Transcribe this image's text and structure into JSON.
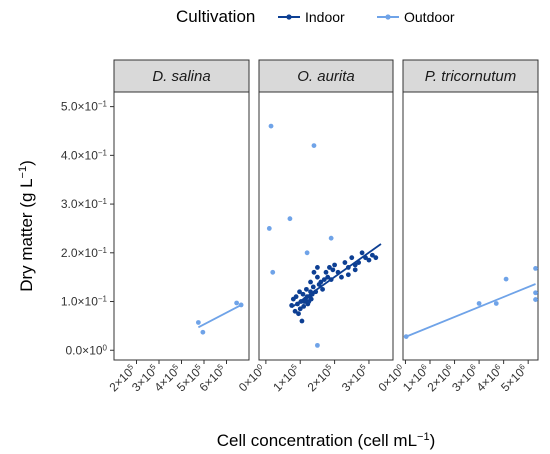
{
  "chart_data": {
    "type": "scatter",
    "xlabel": "Cell concentration (cell mL",
    "xlabel_sup": "−1",
    "xlabel_end": ")",
    "ylabel": "Dry matter (g L",
    "ylabel_sup": "−1",
    "ylabel_end": ")",
    "legend": {
      "title": "Cultivation",
      "position": "top",
      "entries": [
        {
          "label": "Indoor",
          "color": "#0d3f93"
        },
        {
          "label": "Outdoor",
          "color": "#6fa3e8"
        }
      ]
    },
    "y_axis": {
      "range": [
        -0.02,
        0.53
      ],
      "ticks": [
        {
          "value": 0.0,
          "mant": "0.0×10",
          "exp": "0"
        },
        {
          "value": 0.1,
          "mant": "1.0×10",
          "exp": "−1"
        },
        {
          "value": 0.2,
          "mant": "2.0×10",
          "exp": "−1"
        },
        {
          "value": 0.3,
          "mant": "3.0×10",
          "exp": "−1"
        },
        {
          "value": 0.4,
          "mant": "4.0×10",
          "exp": "−1"
        },
        {
          "value": 0.5,
          "mant": "5.0×10",
          "exp": "−1"
        }
      ]
    },
    "grid": false,
    "panels": [
      {
        "title": "D. salina",
        "x_range": [
          100000,
          700000
        ],
        "x_ticks": [
          {
            "value": 200000,
            "mant": "2×10",
            "exp": "5"
          },
          {
            "value": 300000,
            "mant": "3×10",
            "exp": "5"
          },
          {
            "value": 400000,
            "mant": "4×10",
            "exp": "5"
          },
          {
            "value": 500000,
            "mant": "5×10",
            "exp": "5"
          },
          {
            "value": 600000,
            "mant": "6×10",
            "exp": "5"
          }
        ],
        "series": [
          {
            "name": "Outdoor",
            "color": "#6fa3e8",
            "x": [
              475000,
              495000,
              645000,
              665000
            ],
            "y": [
              0.057,
              0.037,
              0.097,
              0.093
            ],
            "fit": [
              [
                475000,
                0.047
              ],
              [
                670000,
                0.094
              ]
            ]
          }
        ]
      },
      {
        "title": "O. aurita",
        "x_range": [
          -20000,
          370000
        ],
        "x_ticks": [
          {
            "value": 0,
            "mant": "0×10",
            "exp": "0"
          },
          {
            "value": 100000,
            "mant": "1×10",
            "exp": "5"
          },
          {
            "value": 200000,
            "mant": "2×10",
            "exp": "5"
          },
          {
            "value": 300000,
            "mant": "3×10",
            "exp": "5"
          }
        ],
        "series": [
          {
            "name": "Outdoor",
            "color": "#6fa3e8",
            "x": [
              15000,
              20000,
              70000,
              140000,
              120000,
              190000,
              150000,
              10000
            ],
            "y": [
              0.46,
              0.16,
              0.27,
              0.42,
              0.2,
              0.23,
              0.01,
              0.25
            ],
            "fit": null
          },
          {
            "name": "Indoor",
            "color": "#0d3f93",
            "x": [
              75000,
              80000,
              85000,
              88000,
              92000,
              95000,
              98000,
              100000,
              102000,
              105000,
              108000,
              110000,
              112000,
              115000,
              118000,
              120000,
              122000,
              125000,
              128000,
              130000,
              132000,
              135000,
              138000,
              140000,
              145000,
              150000,
              155000,
              160000,
              165000,
              170000,
              175000,
              180000,
              185000,
              190000,
              195000,
              200000,
              210000,
              220000,
              230000,
              240000,
              250000,
              260000,
              270000,
              280000,
              290000,
              300000,
              310000,
              320000,
              130000,
              150000,
              240000,
              260000
            ],
            "y": [
              0.092,
              0.105,
              0.08,
              0.11,
              0.095,
              0.075,
              0.12,
              0.085,
              0.1,
              0.06,
              0.115,
              0.09,
              0.1,
              0.105,
              0.125,
              0.11,
              0.095,
              0.1,
              0.11,
              0.12,
              0.105,
              0.115,
              0.13,
              0.16,
              0.12,
              0.15,
              0.135,
              0.14,
              0.125,
              0.145,
              0.16,
              0.15,
              0.17,
              0.145,
              0.165,
              0.175,
              0.16,
              0.15,
              0.18,
              0.17,
              0.19,
              0.175,
              0.18,
              0.2,
              0.19,
              0.185,
              0.195,
              0.19,
              0.14,
              0.17,
              0.155,
              0.165
            ],
            "fit": [
              [
                75000,
                0.088
              ],
              [
                335000,
                0.218
              ]
            ]
          }
        ]
      },
      {
        "title": "P. tricornutum",
        "x_range": [
          -100000,
          5400000
        ],
        "x_ticks": [
          {
            "value": 0,
            "mant": "0×10",
            "exp": "0"
          },
          {
            "value": 1000000,
            "mant": "1×10",
            "exp": "6"
          },
          {
            "value": 2000000,
            "mant": "2×10",
            "exp": "6"
          },
          {
            "value": 3000000,
            "mant": "3×10",
            "exp": "6"
          },
          {
            "value": 4000000,
            "mant": "4×10",
            "exp": "6"
          },
          {
            "value": 5000000,
            "mant": "5×10",
            "exp": "6"
          }
        ],
        "series": [
          {
            "name": "Outdoor",
            "color": "#6fa3e8",
            "x": [
              30000,
              3000000,
              3700000,
              4100000,
              5300000,
              5300000,
              5300000
            ],
            "y": [
              0.028,
              0.096,
              0.096,
              0.146,
              0.168,
              0.118,
              0.104
            ],
            "fit": [
              [
                30000,
                0.028
              ],
              [
                5300000,
                0.136
              ]
            ]
          }
        ]
      }
    ]
  }
}
